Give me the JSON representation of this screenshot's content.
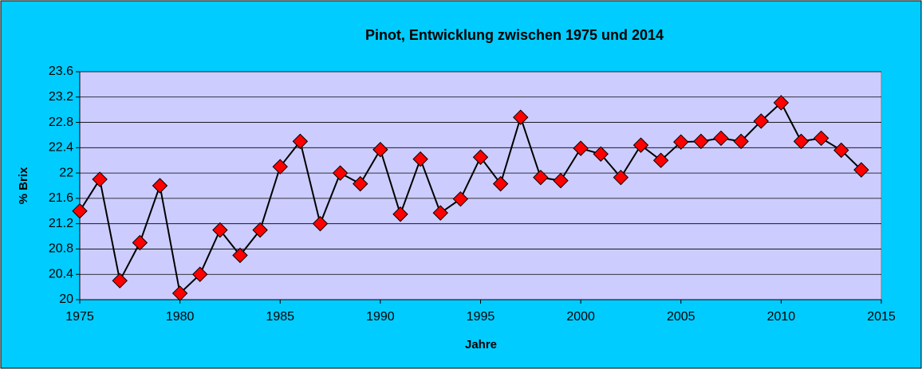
{
  "chart_data": {
    "type": "line",
    "title": "Pinot, Entwicklung zwischen 1975 und 2014",
    "x_label": "Jahre",
    "y_label": "% Brix",
    "x": [
      1975,
      1976,
      1977,
      1978,
      1979,
      1980,
      1981,
      1982,
      1983,
      1984,
      1985,
      1986,
      1987,
      1988,
      1989,
      1990,
      1991,
      1992,
      1993,
      1994,
      1995,
      1996,
      1997,
      1998,
      1999,
      2000,
      2001,
      2002,
      2003,
      2004,
      2005,
      2006,
      2007,
      2008,
      2009,
      2010,
      2011,
      2012,
      2013,
      2014
    ],
    "series": [
      {
        "name": "Pinot",
        "color": "#ff0000",
        "values": [
          21.4,
          21.9,
          20.3,
          20.9,
          21.8,
          20.1,
          20.4,
          21.1,
          20.7,
          21.1,
          22.1,
          22.5,
          21.2,
          22.0,
          21.83,
          22.37,
          21.35,
          22.22,
          21.37,
          21.59,
          22.25,
          21.83,
          22.88,
          21.93,
          21.88,
          22.39,
          22.3,
          21.93,
          22.44,
          22.2,
          22.49,
          22.5,
          22.55,
          22.5,
          22.82,
          23.11,
          22.5,
          22.55,
          22.36,
          22.05
        ]
      }
    ],
    "xlim": [
      1975,
      2015
    ],
    "xticks": [
      1975,
      1980,
      1985,
      1990,
      1995,
      2000,
      2005,
      2010,
      2015
    ],
    "ylim": [
      20,
      23.6
    ],
    "yticks": [
      20,
      20.4,
      20.8,
      21.2,
      21.6,
      22,
      22.4,
      22.8,
      23.2,
      23.6
    ],
    "grid": true
  }
}
